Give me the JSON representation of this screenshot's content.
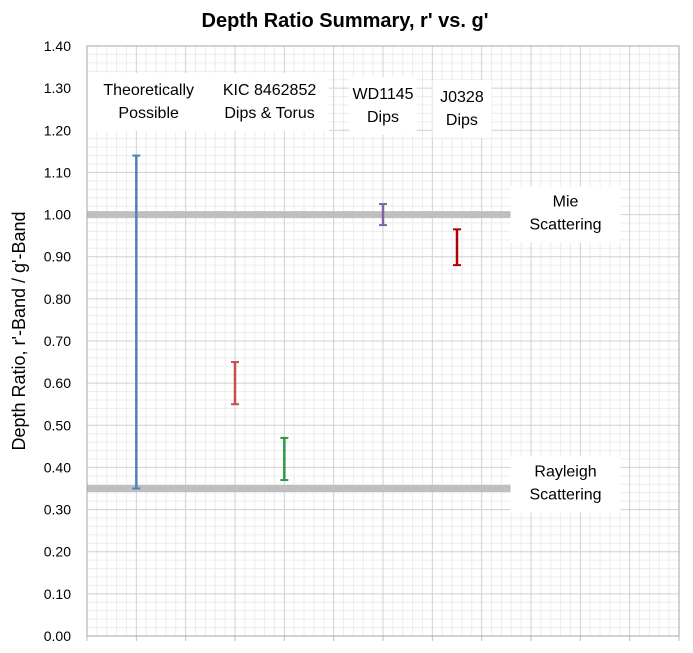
{
  "chart_data": {
    "type": "errorbar",
    "title": "Depth Ratio Summary, r' vs. g'",
    "ylabel": "Depth Ratio, r'-Band / g'-Band",
    "xlabel": "",
    "ylim": [
      0.0,
      1.4
    ],
    "ytick_step": 0.1,
    "xlim": [
      0,
      12
    ],
    "grid": true,
    "reference_lines": [
      {
        "y": 1.0,
        "label": [
          "Mie",
          "Scattering"
        ],
        "color": "#bfbfbf"
      },
      {
        "y": 0.35,
        "label": [
          "Rayleigh",
          "Scattering"
        ],
        "color": "#bfbfbf"
      }
    ],
    "series": [
      {
        "label": [
          "Theoretically",
          "Possible"
        ],
        "x": 1.0,
        "low": 0.35,
        "high": 1.14,
        "color": "#4f81bd"
      },
      {
        "label": [
          "KIC 8462852",
          "Dips & Torus"
        ],
        "x": 3.0,
        "low": 0.55,
        "high": 0.65,
        "color": "#c0504d"
      },
      {
        "label": [],
        "x": 4.0,
        "low": 0.37,
        "high": 0.47,
        "color": "#2e9a42"
      },
      {
        "label": [
          "WD1145",
          "Dips"
        ],
        "x": 6.0,
        "low": 0.975,
        "high": 1.025,
        "color": "#8064a2"
      },
      {
        "label": [
          "J0328",
          "Dips"
        ],
        "x": 7.5,
        "low": 0.88,
        "high": 0.965,
        "color": "#b00000"
      }
    ]
  }
}
